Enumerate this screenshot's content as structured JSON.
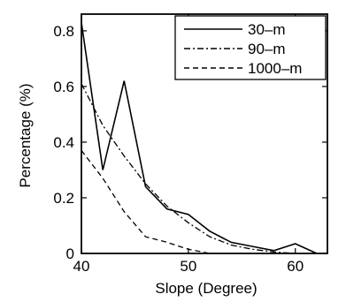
{
  "chart_data": {
    "type": "line",
    "xlabel": "Slope (Degree)",
    "ylabel": "Percentage (%)",
    "xlim": [
      40,
      63
    ],
    "ylim": [
      0,
      0.86
    ],
    "xticks": [
      40,
      50,
      60
    ],
    "yticks": [
      0,
      0.2,
      0.4,
      0.6,
      0.8
    ],
    "ytick_labels": [
      "0",
      "0.2",
      "0.4",
      "0.6",
      "0.8"
    ],
    "legend_position": "top-right",
    "grid": false,
    "series": [
      {
        "name": "30–m",
        "style": "solid",
        "x": [
          40,
          42,
          44,
          46,
          48,
          50,
          52,
          54,
          56,
          58,
          60,
          62
        ],
        "y": [
          0.83,
          0.3,
          0.62,
          0.24,
          0.16,
          0.14,
          0.08,
          0.04,
          0.025,
          0.01,
          0.035,
          0.0
        ]
      },
      {
        "name": "90–m",
        "style": "dashdot",
        "x": [
          40,
          42,
          44,
          46,
          48,
          50,
          52,
          54,
          56,
          58,
          60
        ],
        "y": [
          0.61,
          0.46,
          0.35,
          0.25,
          0.17,
          0.11,
          0.06,
          0.03,
          0.015,
          0.005,
          0.0
        ]
      },
      {
        "name": "1000–m",
        "style": "dashed",
        "x": [
          40,
          42,
          44,
          46,
          48,
          50,
          52
        ],
        "y": [
          0.37,
          0.27,
          0.15,
          0.06,
          0.04,
          0.015,
          0.0
        ]
      }
    ]
  }
}
